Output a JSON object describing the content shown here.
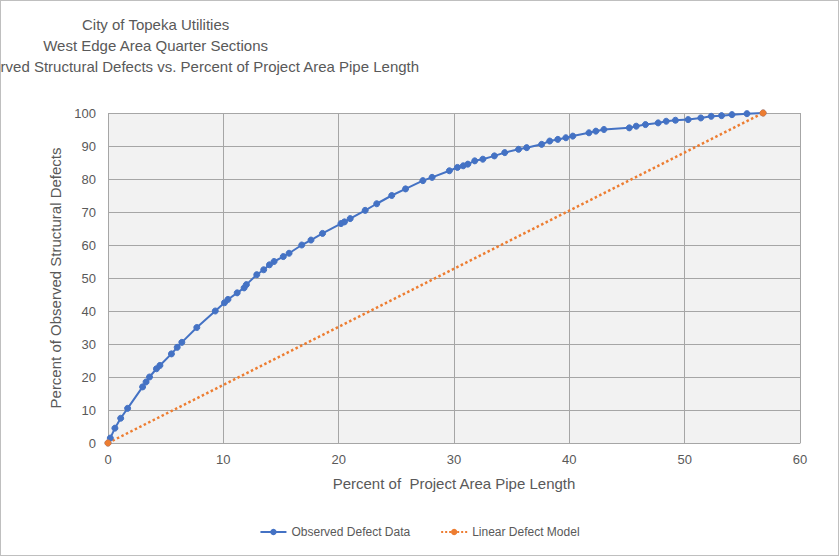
{
  "chart_data": {
    "type": "line",
    "title": [
      "City of Topeka Utilities",
      "West Edge Area Quarter Sections",
      "Percent of Observed Structural Defects vs. Percent of Project Area Pipe Length"
    ],
    "x_label": "Percent of  Project Area Pipe Length",
    "y_label": "Percent of Observed Structural Defects",
    "xlim": [
      0,
      60
    ],
    "xticks": [
      0,
      10,
      20,
      30,
      40,
      50,
      60
    ],
    "ylim": [
      0,
      100
    ],
    "yticks": [
      0,
      10,
      20,
      30,
      40,
      50,
      60,
      70,
      80,
      90,
      100
    ],
    "grid": true,
    "legend": "bottom",
    "series": [
      {
        "name": "Observed Defect Data",
        "color": "#4472c4",
        "marker": "circle",
        "line_style": "solid",
        "x": [
          0,
          0.2,
          0.6,
          1.1,
          1.7,
          3.0,
          3.3,
          3.6,
          4.2,
          4.5,
          5.5,
          6.0,
          6.4,
          7.7,
          9.3,
          10.1,
          10.4,
          11.2,
          11.8,
          12.0,
          12.9,
          13.5,
          14.0,
          14.4,
          15.2,
          15.7,
          16.8,
          17.6,
          18.6,
          20.2,
          20.5,
          21.0,
          22.3,
          23.3,
          24.6,
          25.8,
          27.3,
          28.1,
          29.6,
          30.3,
          30.8,
          31.2,
          31.8,
          32.5,
          33.5,
          34.4,
          35.6,
          36.3,
          37.6,
          38.3,
          39.0,
          39.7,
          40.3,
          41.7,
          42.3,
          43.0,
          45.2,
          45.8,
          46.6,
          47.7,
          48.4,
          49.2,
          50.3,
          51.4,
          52.3,
          53.2,
          54.1,
          55.4,
          56.8
        ],
        "values": [
          0,
          1.5,
          4.5,
          7.5,
          10.5,
          17,
          18.5,
          20,
          22.5,
          23.5,
          27,
          29,
          30.5,
          35,
          40,
          42.5,
          43.5,
          45.5,
          47,
          48,
          51,
          52.5,
          54,
          55,
          56.5,
          57.5,
          60,
          61.5,
          63.5,
          66.5,
          67,
          68,
          70.5,
          72.5,
          75,
          77,
          79.5,
          80.5,
          82.5,
          83.5,
          84,
          84.5,
          85.5,
          86,
          87,
          88,
          89,
          89.5,
          90.5,
          91.5,
          92,
          92.5,
          93,
          94,
          94.5,
          95,
          95.5,
          96,
          96.5,
          97,
          97.5,
          97.8,
          98,
          98.5,
          99,
          99.2,
          99.5,
          99.8,
          100
        ]
      },
      {
        "name": "Linear Defect Model",
        "color": "#ed7d31",
        "marker": "circle",
        "line_style": "dotted",
        "x": [
          0,
          56.8
        ],
        "values": [
          0,
          100
        ]
      }
    ]
  }
}
